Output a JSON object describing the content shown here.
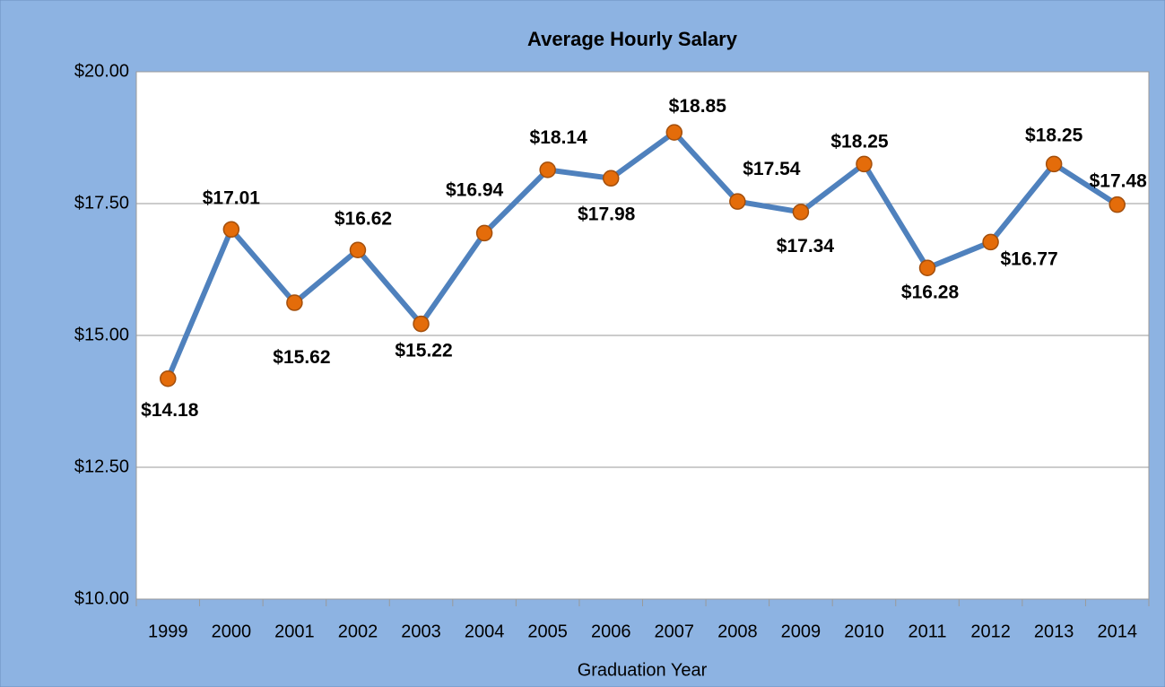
{
  "chart_data": {
    "type": "line",
    "title": "Average Hourly Salary",
    "x_label": "Graduation Year",
    "categories": [
      "1999",
      "2000",
      "2001",
      "2002",
      "2003",
      "2004",
      "2005",
      "2006",
      "2007",
      "2008",
      "2009",
      "2010",
      "2011",
      "2012",
      "2013",
      "2014"
    ],
    "series": [
      {
        "name": "Average Hourly Salary",
        "color": "#4f81bd",
        "marker_color": "#e46c0a",
        "values": [
          14.18,
          17.01,
          15.62,
          16.62,
          15.22,
          16.94,
          18.14,
          17.98,
          18.85,
          17.54,
          17.34,
          18.25,
          16.28,
          16.77,
          18.25,
          17.48
        ],
        "value_labels": [
          "$14.18",
          "$17.01",
          "$15.62",
          "$16.62",
          "$15.22",
          "$16.94",
          "$18.14",
          "$17.98",
          "$18.85",
          "$17.54",
          "$17.34",
          "$18.25",
          "$16.28",
          "$16.77",
          "$18.25",
          "$17.48"
        ]
      }
    ],
    "ylim": [
      10,
      20
    ],
    "yticks": [
      {
        "value": 10,
        "label": "$10.00"
      },
      {
        "value": 12.5,
        "label": "$12.50"
      },
      {
        "value": 15,
        "label": "$15.00"
      },
      {
        "value": 17.5,
        "label": "$17.50"
      },
      {
        "value": 20,
        "label": "$20.00"
      }
    ],
    "grid": true
  }
}
